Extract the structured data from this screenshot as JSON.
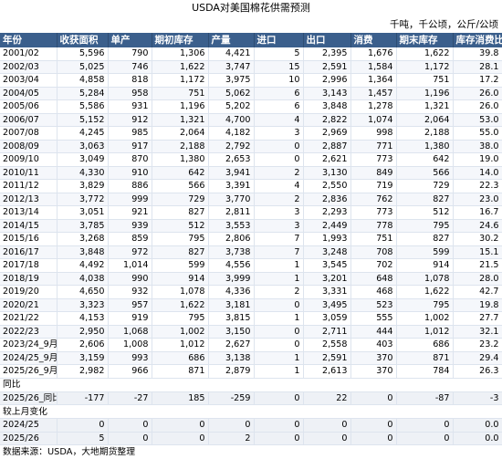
{
  "title": "USDA对美国棉花供需预测",
  "unit": "千吨，千公顷，公斤/公顷",
  "columns": [
    "年份",
    "收获面积",
    "单产",
    "期初库存",
    "产量",
    "进口",
    "出口",
    "消费",
    "期末库存",
    "库存消费比"
  ],
  "rows": [
    [
      "2001/02",
      "5,596",
      "790",
      "1,306",
      "4,421",
      "5",
      "2,395",
      "1,676",
      "1,622",
      "39.8"
    ],
    [
      "2002/03",
      "5,025",
      "746",
      "1,622",
      "3,747",
      "15",
      "2,591",
      "1,584",
      "1,172",
      "28.1"
    ],
    [
      "2003/04",
      "4,858",
      "818",
      "1,172",
      "3,975",
      "10",
      "2,996",
      "1,364",
      "751",
      "17.2"
    ],
    [
      "2004/05",
      "5,284",
      "958",
      "751",
      "5,062",
      "6",
      "3,143",
      "1,457",
      "1,196",
      "26.0"
    ],
    [
      "2005/06",
      "5,586",
      "931",
      "1,196",
      "5,202",
      "6",
      "3,848",
      "1,278",
      "1,321",
      "26.0"
    ],
    [
      "2006/07",
      "5,152",
      "912",
      "1,321",
      "4,700",
      "4",
      "2,822",
      "1,074",
      "2,064",
      "53.0"
    ],
    [
      "2007/08",
      "4,245",
      "985",
      "2,064",
      "4,182",
      "3",
      "2,969",
      "998",
      "2,188",
      "55.0"
    ],
    [
      "2008/09",
      "3,063",
      "917",
      "2,188",
      "2,792",
      "0",
      "2,887",
      "771",
      "1,380",
      "38.0"
    ],
    [
      "2009/10",
      "3,049",
      "870",
      "1,380",
      "2,653",
      "0",
      "2,621",
      "773",
      "642",
      "19.0"
    ],
    [
      "2010/11",
      "4,330",
      "910",
      "642",
      "3,941",
      "2",
      "3,130",
      "849",
      "566",
      "14.0"
    ],
    [
      "2011/12",
      "3,829",
      "886",
      "566",
      "3,391",
      "4",
      "2,550",
      "719",
      "729",
      "22.3"
    ],
    [
      "2012/13",
      "3,772",
      "999",
      "729",
      "3,770",
      "2",
      "2,836",
      "762",
      "827",
      "23.0"
    ],
    [
      "2013/14",
      "3,051",
      "921",
      "827",
      "2,811",
      "3",
      "2,293",
      "773",
      "512",
      "16.7"
    ],
    [
      "2014/15",
      "3,785",
      "939",
      "512",
      "3,553",
      "3",
      "2,449",
      "778",
      "795",
      "24.6"
    ],
    [
      "2015/16",
      "3,268",
      "859",
      "795",
      "2,806",
      "7",
      "1,993",
      "751",
      "827",
      "30.2"
    ],
    [
      "2016/17",
      "3,848",
      "972",
      "827",
      "3,738",
      "7",
      "3,248",
      "708",
      "599",
      "15.1"
    ],
    [
      "2017/18",
      "4,492",
      "1,014",
      "599",
      "4,556",
      "1",
      "3,545",
      "702",
      "914",
      "21.5"
    ],
    [
      "2018/19",
      "4,038",
      "990",
      "914",
      "3,999",
      "1",
      "3,201",
      "648",
      "1,078",
      "28.0"
    ],
    [
      "2019/20",
      "4,650",
      "932",
      "1,078",
      "4,336",
      "2",
      "3,331",
      "468",
      "1,622",
      "42.7"
    ],
    [
      "2020/21",
      "3,323",
      "957",
      "1,622",
      "3,181",
      "0",
      "3,495",
      "523",
      "795",
      "19.8"
    ],
    [
      "2021/22",
      "4,153",
      "919",
      "795",
      "3,815",
      "1",
      "3,059",
      "555",
      "1,002",
      "27.7"
    ],
    [
      "2022/23",
      "2,950",
      "1,068",
      "1,002",
      "3,150",
      "0",
      "2,711",
      "444",
      "1,012",
      "32.1"
    ],
    [
      "2023/24_9月",
      "2,606",
      "1,008",
      "1,012",
      "2,627",
      "0",
      "2,558",
      "403",
      "686",
      "23.2"
    ],
    [
      "2024/25_9月",
      "3,159",
      "993",
      "686",
      "3,138",
      "1",
      "2,591",
      "370",
      "871",
      "29.4"
    ],
    [
      "2025/26_9月",
      "2,982",
      "966",
      "871",
      "2,879",
      "1",
      "2,613",
      "370",
      "784",
      "26.3"
    ]
  ],
  "section_yoy": "同比",
  "yoy_rows": [
    [
      "2025/26_同比",
      "-177",
      "-27",
      "185",
      "-259",
      "0",
      "22",
      "0",
      "-87",
      "-3"
    ]
  ],
  "section_mom": "较上月变化",
  "mom_rows": [
    [
      "2024/25",
      "0",
      "0",
      "0",
      "0",
      "0",
      "0",
      "0",
      "0",
      "0.0"
    ],
    [
      "2025/26",
      "5",
      "0",
      "0",
      "2",
      "0",
      "0",
      "0",
      "0",
      "0.0"
    ]
  ],
  "source": "数据来源：USDA，大地期货整理"
}
